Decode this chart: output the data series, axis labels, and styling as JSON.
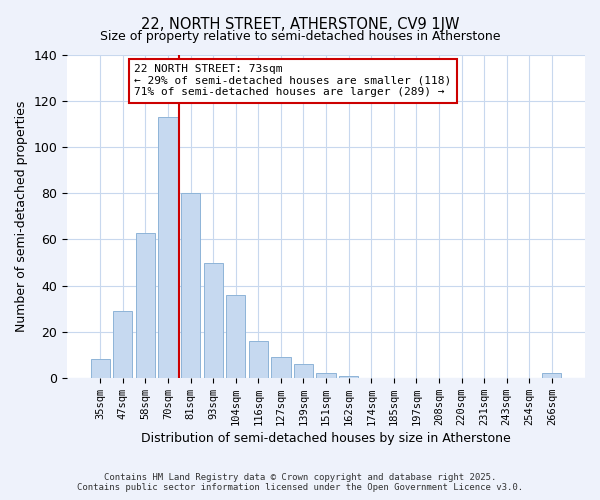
{
  "title": "22, NORTH STREET, ATHERSTONE, CV9 1JW",
  "subtitle": "Size of property relative to semi-detached houses in Atherstone",
  "xlabel": "Distribution of semi-detached houses by size in Atherstone",
  "ylabel": "Number of semi-detached properties",
  "bar_labels": [
    "35sqm",
    "47sqm",
    "58sqm",
    "70sqm",
    "81sqm",
    "93sqm",
    "104sqm",
    "116sqm",
    "127sqm",
    "139sqm",
    "151sqm",
    "162sqm",
    "174sqm",
    "185sqm",
    "197sqm",
    "208sqm",
    "220sqm",
    "231sqm",
    "243sqm",
    "254sqm",
    "266sqm"
  ],
  "bar_values": [
    8,
    29,
    63,
    113,
    80,
    50,
    36,
    16,
    9,
    6,
    2,
    1,
    0,
    0,
    0,
    0,
    0,
    0,
    0,
    0,
    2
  ],
  "bar_color": "#c6d9f0",
  "bar_edge_color": "#8eb4d8",
  "ylim": [
    0,
    140
  ],
  "yticks": [
    0,
    20,
    40,
    60,
    80,
    100,
    120,
    140
  ],
  "vline_x_index": 3,
  "vline_color": "#cc0000",
  "annotation_title": "22 NORTH STREET: 73sqm",
  "annotation_line1": "← 29% of semi-detached houses are smaller (118)",
  "annotation_line2": "71% of semi-detached houses are larger (289) →",
  "footnote1": "Contains HM Land Registry data © Crown copyright and database right 2025.",
  "footnote2": "Contains public sector information licensed under the Open Government Licence v3.0.",
  "bg_color": "#eef2fb",
  "plot_bg_color": "#ffffff",
  "grid_color": "#c8d8ee"
}
